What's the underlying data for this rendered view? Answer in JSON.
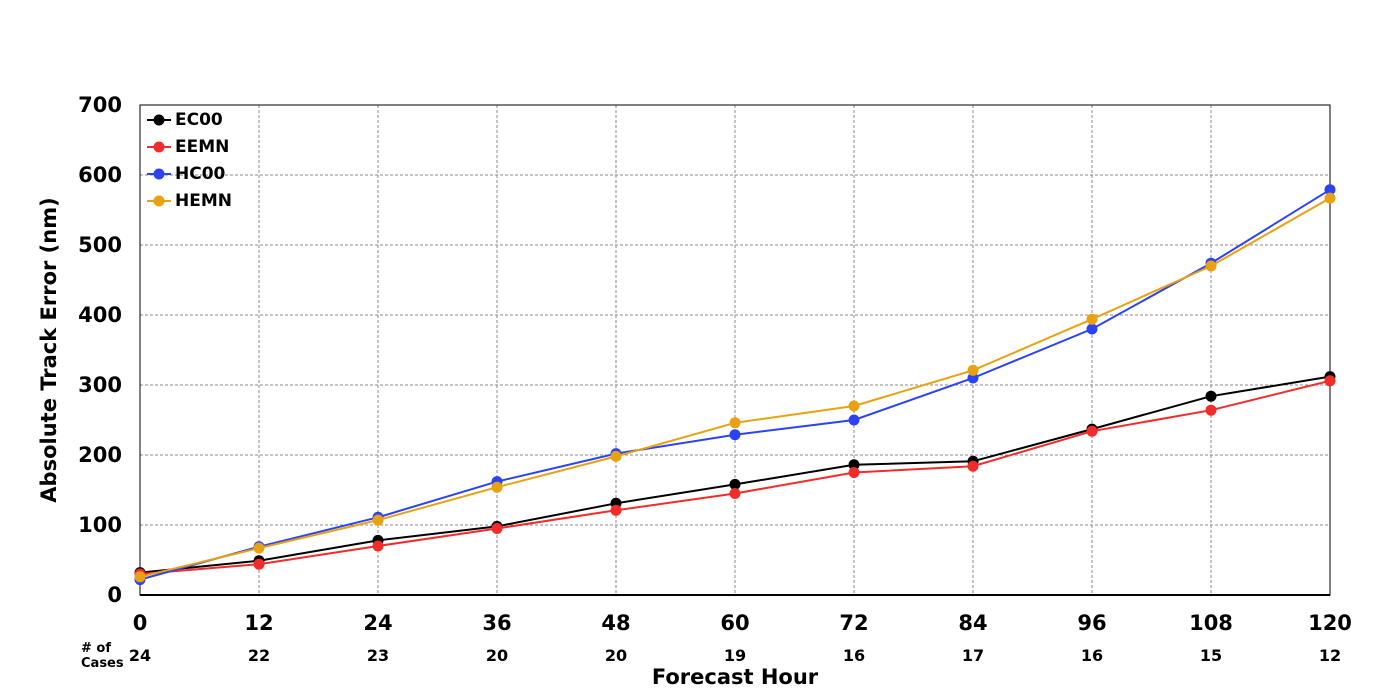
{
  "chart_data": {
    "type": "line",
    "xlabel": "Forecast Hour",
    "ylabel": "Absolute Track Error (nm)",
    "x": [
      0,
      12,
      24,
      36,
      48,
      60,
      72,
      84,
      96,
      108,
      120
    ],
    "xlim": [
      0,
      120
    ],
    "ylim": [
      0,
      700
    ],
    "yticks": [
      0,
      100,
      200,
      300,
      400,
      500,
      600,
      700
    ],
    "grid": true,
    "legend_position": "top-left",
    "cases_header": "# of\nCases",
    "cases": [
      24,
      22,
      23,
      20,
      20,
      19,
      16,
      17,
      16,
      15,
      12
    ],
    "series": [
      {
        "name": "EC00",
        "color": "#000000",
        "values": [
          32,
          49,
          78,
          98,
          131,
          158,
          186,
          191,
          237,
          284,
          312
        ]
      },
      {
        "name": "EEMN",
        "color": "#f22b2b",
        "values": [
          30,
          44,
          70,
          95,
          121,
          145,
          175,
          184,
          234,
          264,
          306
        ]
      },
      {
        "name": "HC00",
        "color": "#2b43f5",
        "values": [
          22,
          69,
          111,
          162,
          202,
          229,
          250,
          310,
          380,
          474,
          579
        ]
      },
      {
        "name": "HEMN",
        "color": "#e8a111",
        "values": [
          26,
          67,
          107,
          154,
          198,
          246,
          270,
          321,
          394,
          470,
          567
        ]
      }
    ]
  }
}
